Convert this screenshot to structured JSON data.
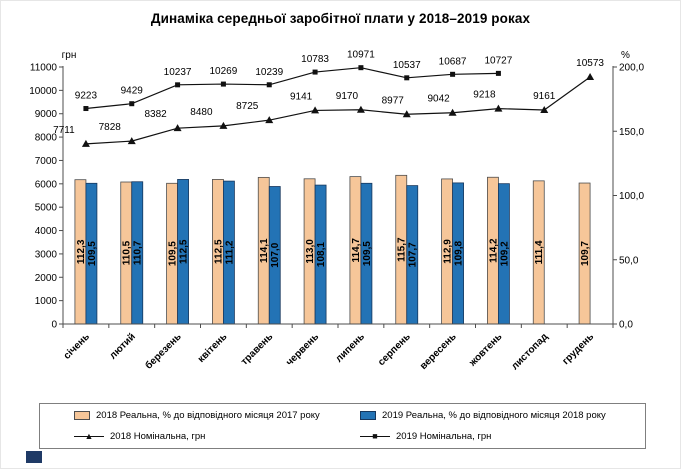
{
  "page": {
    "title": "Динаміка середньої заробітної плати у 2018–2019 роках"
  },
  "chart_data": {
    "type": "combo-bar-line",
    "title": "Динаміка середньої заробітної плати у 2018–2019 роках",
    "categories": [
      "січень",
      "лютий",
      "березень",
      "квітень",
      "травень",
      "червень",
      "липень",
      "серпень",
      "вересень",
      "жовтень",
      "листопад",
      "грудень"
    ],
    "left_axis": {
      "label": "грн",
      "min": 0,
      "max": 11000,
      "tick_step": 1000,
      "tick_labels": [
        "11000",
        "10000",
        "9000",
        "8000",
        "7000",
        "6000",
        "5000",
        "4000",
        "3000",
        "2000",
        "1000",
        "0"
      ]
    },
    "right_axis": {
      "label": "%",
      "min": 0,
      "max": 200,
      "tick_labels": [
        "200,0",
        "150,0",
        "100,0",
        "50,0",
        "0,0"
      ]
    },
    "bar_series": [
      {
        "name": "2018 Реальна, % до відповідного місяця 2017 року",
        "axis": "right",
        "color": "#F6C699",
        "border_color": "#4d4d4d",
        "values": [
          112.3,
          110.5,
          109.5,
          112.5,
          114.1,
          113.0,
          114.7,
          115.7,
          112.9,
          114.2,
          111.4,
          109.7
        ],
        "value_labels": [
          "112,3",
          "110,5",
          "109,5",
          "112,5",
          "114,1",
          "113,0",
          "114,7",
          "115,7",
          "112,9",
          "114,2",
          "111,4",
          "109,7"
        ]
      },
      {
        "name": "2019 Реальна, % до відповідного місяця 2018 року",
        "axis": "right",
        "color": "#2373B5",
        "border_color": "#17375d",
        "values": [
          109.5,
          110.7,
          112.5,
          111.2,
          107.0,
          108.1,
          109.5,
          107.7,
          109.8,
          109.2,
          null,
          null
        ],
        "value_labels": [
          "109,5",
          "110,7",
          "112,5",
          "111,2",
          "107,0",
          "108,1",
          "109,5",
          "107,7",
          "109,8",
          "109,2",
          null,
          null
        ]
      }
    ],
    "line_series": [
      {
        "name": "2018 Номінальна, грн",
        "marker": "triangle",
        "axis": "left",
        "color": "#111111",
        "values": [
          7711,
          7828,
          8382,
          8480,
          8725,
          9141,
          9170,
          8977,
          9042,
          9218,
          9161,
          10573
        ],
        "value_labels": [
          "7711",
          "7828",
          "8382",
          "8480",
          "8725",
          "9141",
          "9170",
          "8977",
          "9042",
          "9218",
          "9161",
          "10573"
        ]
      },
      {
        "name": "2019 Номінальна, грн",
        "marker": "square",
        "axis": "left",
        "color": "#111111",
        "values": [
          9223,
          9429,
          10237,
          10269,
          10239,
          10783,
          10971,
          10537,
          10687,
          10727,
          null,
          null
        ],
        "value_labels": [
          "9223",
          "9429",
          "10237",
          "10269",
          "10239",
          "10783",
          "10971",
          "10537",
          "10687",
          "10727",
          null,
          null
        ]
      }
    ],
    "legend_position": "bottom",
    "grid": false
  },
  "legend": {
    "items": [
      {
        "kind": "bar",
        "label": "2018 Реальна, % до відповідного місяця 2017 року"
      },
      {
        "kind": "bar",
        "label": "2019 Реальна, % до відповідного місяця 2018 року"
      },
      {
        "kind": "line",
        "marker_glyph": "▲",
        "label": "2018 Номінальна, грн"
      },
      {
        "kind": "line",
        "marker_glyph": "■",
        "label": "2019 Номінальна, грн"
      }
    ]
  }
}
